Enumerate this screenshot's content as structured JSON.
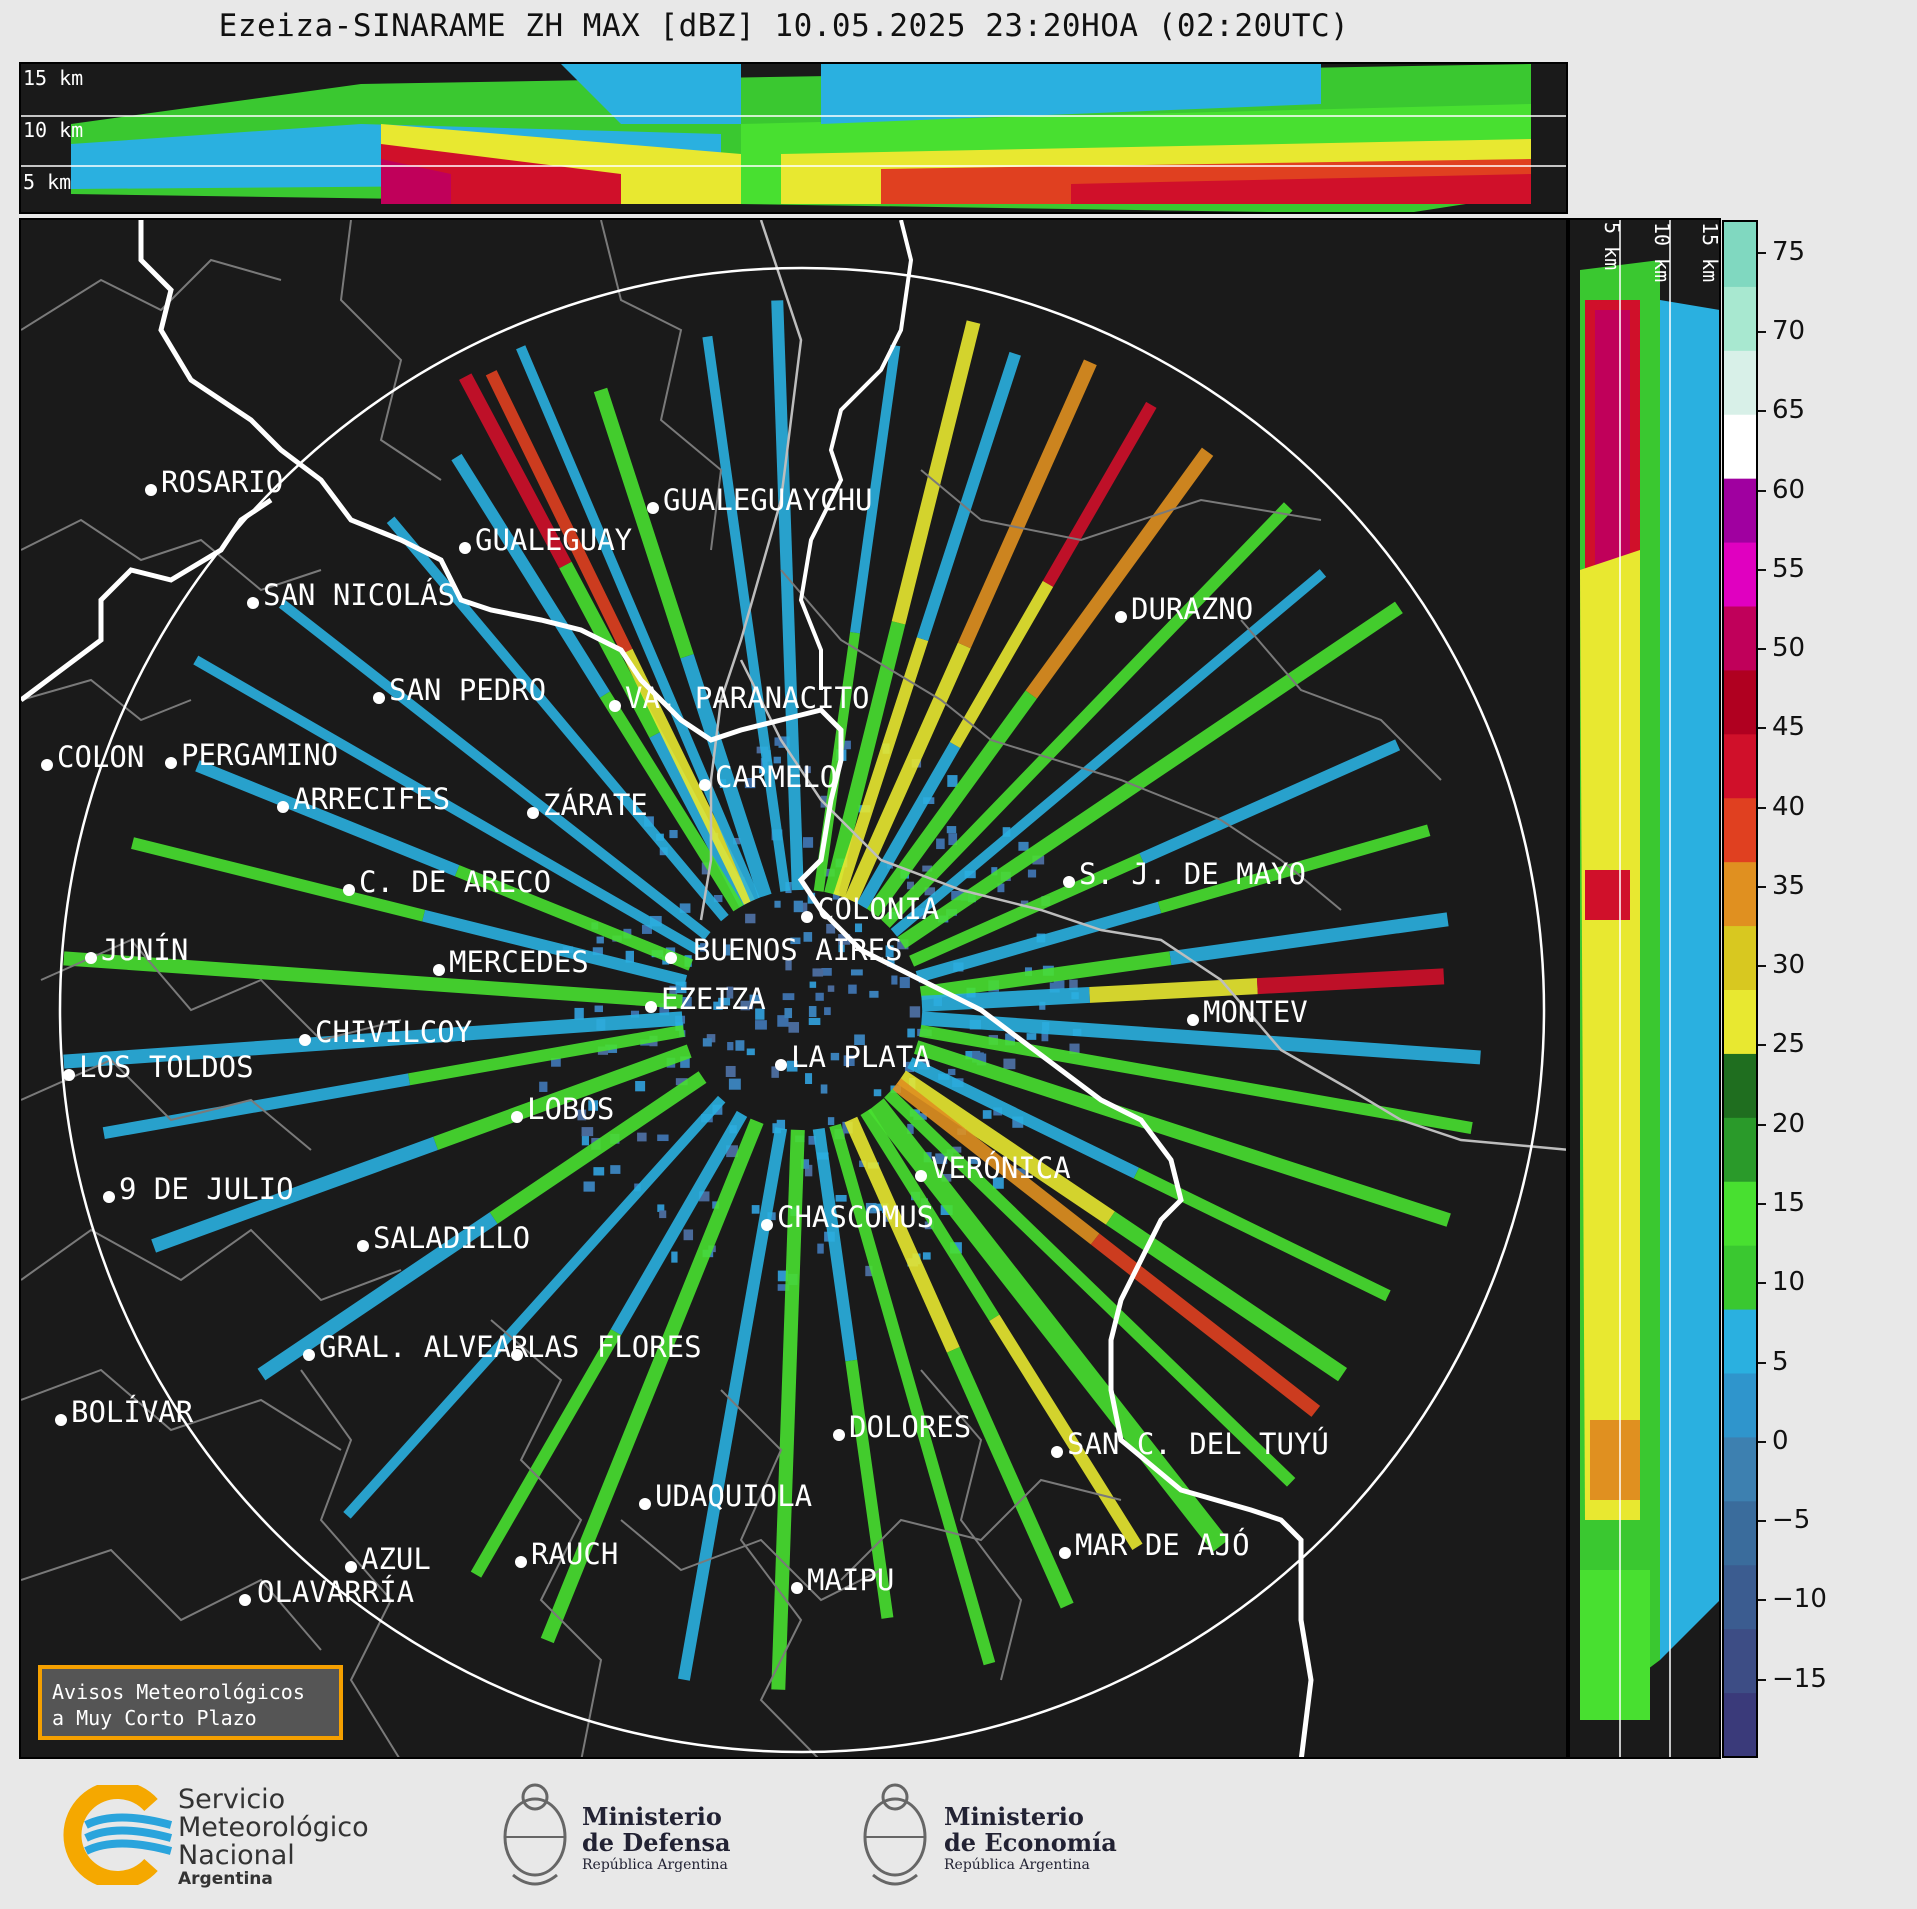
{
  "title": "Ezeiza-SINARAME ZH MAX [dBZ] 10.05.2025 23:20HOA (02:20UTC)",
  "top_panel": {
    "height_labels": [
      "15 km",
      "10 km",
      "5 km"
    ]
  },
  "side_panel": {
    "height_labels": [
      "5 km",
      "10 km",
      "15 km"
    ]
  },
  "colorbar": {
    "ticks": [
      "75",
      "70",
      "65",
      "60",
      "55",
      "50",
      "45",
      "40",
      "35",
      "30",
      "25",
      "20",
      "15",
      "10",
      "5",
      "0",
      "−5",
      "−10",
      "−15"
    ],
    "colors": [
      "#3a3a7a",
      "#3d4d85",
      "#3b5c90",
      "#3a6c9c",
      "#3d80b0",
      "#2f95cc",
      "#2ab0e0",
      "#3ac830",
      "#48e030",
      "#2a9a2a",
      "#1f6e1f",
      "#e8e830",
      "#d8c820",
      "#e09020",
      "#e04020",
      "#d0102a",
      "#b00020",
      "#c0005a",
      "#e000c0",
      "#a000a0",
      "#ffffff",
      "#d8f0e8",
      "#a8e8d0",
      "#80d8c0"
    ],
    "range": [
      -20,
      77
    ]
  },
  "cities": [
    {
      "name": "ROSARIO"
    },
    {
      "name": "GUALEGUAYCHU"
    },
    {
      "name": "GUALEGUAY"
    },
    {
      "name": "SAN NICOLÁS"
    },
    {
      "name": "DURAZNO"
    },
    {
      "name": "SAN PEDRO"
    },
    {
      "name": "VA. PARANACITO"
    },
    {
      "name": "COLON"
    },
    {
      "name": "PERGAMINO"
    },
    {
      "name": "CARMELO"
    },
    {
      "name": "ARRECIFES"
    },
    {
      "name": "ZÁRATE"
    },
    {
      "name": "S. J. DE MAYO"
    },
    {
      "name": "C. DE ARECO"
    },
    {
      "name": "COLONIA"
    },
    {
      "name": "BUENOS AIRES"
    },
    {
      "name": "JUNÍN"
    },
    {
      "name": "MERCEDES"
    },
    {
      "name": "EZEIZA"
    },
    {
      "name": "MONTEV"
    },
    {
      "name": "CHIVILCOY"
    },
    {
      "name": "LA PLATA"
    },
    {
      "name": "LOS TOLDOS"
    },
    {
      "name": "LOBOS"
    },
    {
      "name": "VERÓNICA"
    },
    {
      "name": "9 DE JULIO"
    },
    {
      "name": "CHASCOMUS"
    },
    {
      "name": "SALADILLO"
    },
    {
      "name": "GRAL. ALVEAR"
    },
    {
      "name": "LAS FLORES"
    },
    {
      "name": "BOLÍVAR"
    },
    {
      "name": "DOLORES"
    },
    {
      "name": "SAN C. DEL TUYÚ"
    },
    {
      "name": "UDAQUIOLA"
    },
    {
      "name": "MAR DE AJÓ"
    },
    {
      "name": "AZUL"
    },
    {
      "name": "RAUCH"
    },
    {
      "name": "MAIPU"
    },
    {
      "name": "OLAVARRÍA"
    }
  ],
  "avisos": {
    "line1": "Avisos Meteorológicos",
    "line2": "a Muy Corto Plazo"
  },
  "logos": {
    "smn": {
      "line1": "Servicio",
      "line2": "Meteorológico",
      "line3": "Nacional",
      "line4": "Argentina"
    },
    "defensa": {
      "line1": "Ministerio",
      "line2": "de Defensa",
      "line3": "República Argentina"
    },
    "economia": {
      "line1": "Ministerio",
      "line2": "de Economía",
      "line3": "República Argentina"
    }
  }
}
